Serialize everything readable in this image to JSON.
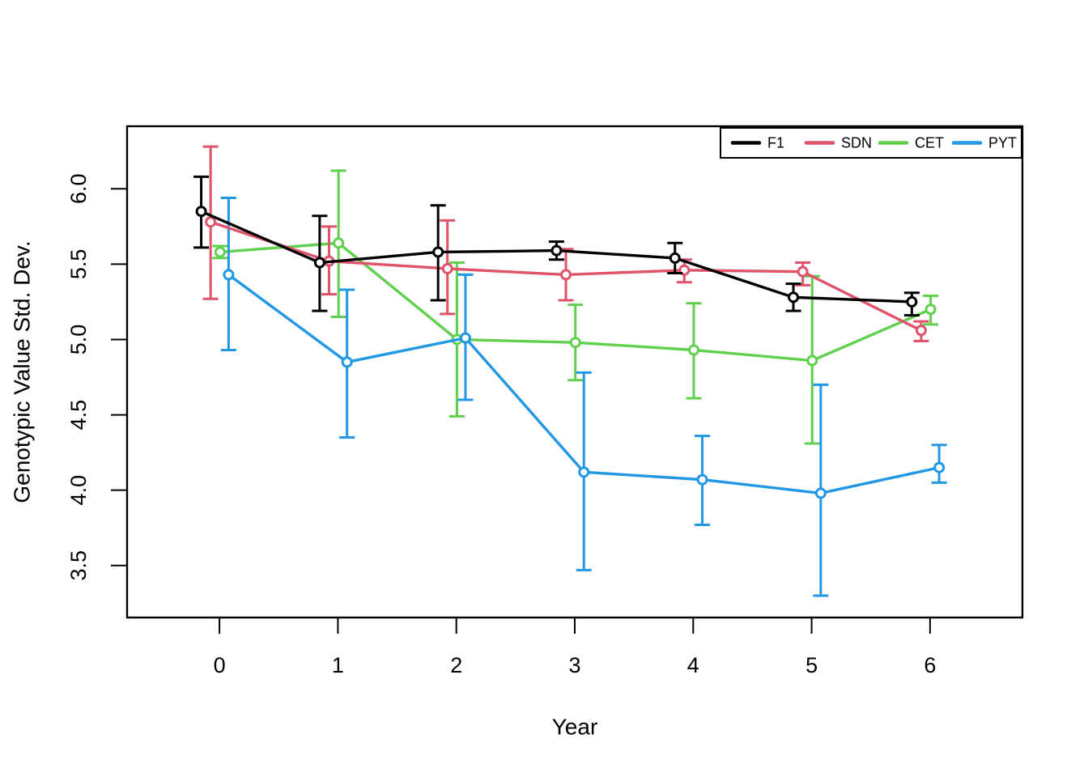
{
  "figure": {
    "background": "#ffffff"
  },
  "chart_data": {
    "type": "line",
    "title": "",
    "xlabel": "Year",
    "ylabel": "Genotypic Value Std. Dev.",
    "x_ticks": [
      0,
      1,
      2,
      3,
      4,
      5,
      6
    ],
    "x_tick_labels": [
      "0",
      "1",
      "2",
      "3",
      "4",
      "5",
      "6"
    ],
    "y_ticks": [
      3.5,
      4.0,
      4.5,
      5.0,
      5.5,
      6.0
    ],
    "y_tick_labels": [
      "3.5",
      "4.0",
      "4.5",
      "5.0",
      "5.5",
      "6.0"
    ],
    "xlim": [
      -0.78,
      6.78
    ],
    "ylim": [
      3.155,
      6.415
    ],
    "grid": false,
    "legend_position": "top-right-inside-horizontal",
    "marker": "open-circle",
    "error_bars": true,
    "draw_order": [
      "CET",
      "PYT",
      "SDN",
      "F1"
    ],
    "series": [
      {
        "name": "F1",
        "color": "#000000",
        "dodge_x": -0.154,
        "x": [
          0,
          1,
          2,
          3,
          4,
          5,
          6
        ],
        "values": [
          5.85,
          5.51,
          5.58,
          5.59,
          5.54,
          5.28,
          5.25
        ],
        "lower": [
          5.61,
          5.19,
          5.26,
          5.53,
          5.44,
          5.19,
          5.16
        ],
        "upper": [
          6.08,
          5.82,
          5.89,
          5.65,
          5.64,
          5.37,
          5.31
        ]
      },
      {
        "name": "SDN",
        "color": "#DF536B",
        "dodge_x": -0.075,
        "x": [
          0,
          1,
          2,
          3,
          4,
          5,
          6
        ],
        "values": [
          5.78,
          5.52,
          5.47,
          5.43,
          5.46,
          5.45,
          5.06
        ],
        "lower": [
          5.27,
          5.3,
          5.17,
          5.26,
          5.38,
          5.36,
          4.99
        ],
        "upper": [
          6.28,
          5.75,
          5.79,
          5.6,
          5.53,
          5.51,
          5.12
        ]
      },
      {
        "name": "CET",
        "color": "#61D04F",
        "dodge_x": 0.005,
        "x": [
          0,
          1,
          2,
          3,
          4,
          5,
          6
        ],
        "values": [
          5.58,
          5.64,
          5.0,
          4.98,
          4.93,
          4.86,
          5.2
        ],
        "lower": [
          5.54,
          5.15,
          4.49,
          4.73,
          4.61,
          4.31,
          5.1
        ],
        "upper": [
          5.62,
          6.12,
          5.51,
          5.23,
          5.24,
          5.42,
          5.29
        ]
      },
      {
        "name": "PYT",
        "color": "#2297E6",
        "dodge_x": 0.077,
        "x": [
          0,
          1,
          2,
          3,
          4,
          5,
          6
        ],
        "values": [
          5.43,
          4.85,
          5.01,
          4.12,
          4.07,
          3.98,
          4.15
        ],
        "lower": [
          4.93,
          4.35,
          4.6,
          3.47,
          3.77,
          3.3,
          4.05
        ],
        "upper": [
          5.94,
          5.33,
          5.43,
          4.78,
          4.36,
          4.7,
          4.3
        ]
      }
    ]
  }
}
